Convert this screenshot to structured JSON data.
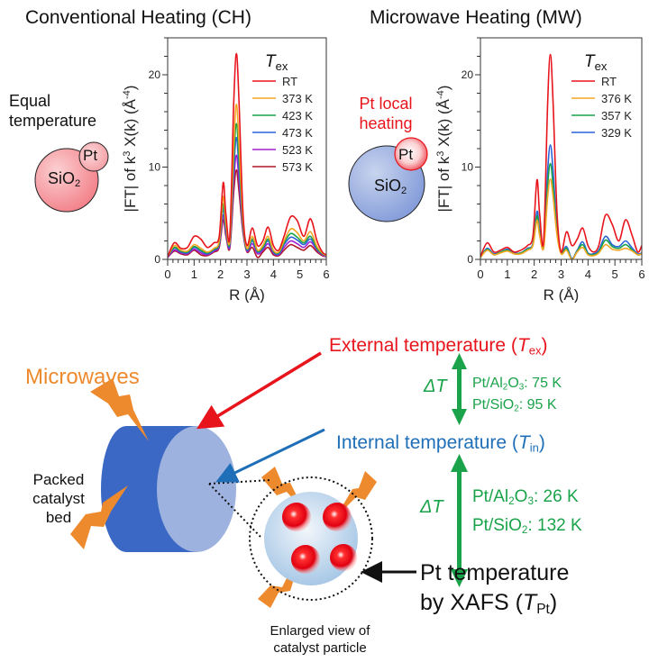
{
  "colors": {
    "red": "#e8141c",
    "orange": "#f5a623",
    "green": "#1aa34a",
    "blue": "#2a62d8",
    "purple": "#a020d0",
    "darkred": "#b01828",
    "microwave_orange": "#ee8a2e",
    "ext_red": "#e8141c",
    "int_blue": "#1f6fb8",
    "delta_green": "#1aa34a",
    "cyl_dark": "#3a68c4",
    "cyl_light": "#9db2df"
  },
  "left_panel": {
    "title": "Conventional Heating (CH)",
    "caption_line1": "Equal",
    "caption_line2": "temperature",
    "particle_pt": "Pt",
    "particle_support": "SiO",
    "particle_support_sub": "2"
  },
  "right_panel": {
    "title": "Microwave Heating (MW)",
    "caption_line1": "Pt local",
    "caption_line2": "heating",
    "particle_pt": "Pt",
    "particle_support": "SiO",
    "particle_support_sub": "2"
  },
  "chart_data": [
    {
      "type": "line",
      "title": "Conventional Heating (CH)",
      "xlabel": "R (Å)",
      "ylabel": "|FT| of k3 X(k) (Å-4)",
      "ylabel_parts": {
        "a": "|FT| of k",
        "b": "3",
        "c": " X(k) (Å",
        "d": "-4",
        "e": ")"
      },
      "xlim": [
        0,
        6
      ],
      "ylim": [
        0,
        24
      ],
      "xticks": [
        "0",
        "1",
        "2",
        "3",
        "4",
        "5",
        "6"
      ],
      "yticks": [
        "0",
        "10",
        "20"
      ],
      "legend_title": "T",
      "legend_title_sub": "ex",
      "legend_position": "top-right",
      "x": [
        0,
        0.25,
        0.5,
        0.75,
        1.0,
        1.25,
        1.5,
        1.75,
        1.95,
        2.1,
        2.2,
        2.35,
        2.5,
        2.6,
        2.7,
        2.85,
        3.0,
        3.2,
        3.4,
        3.6,
        3.8,
        4.0,
        4.2,
        4.4,
        4.65,
        4.9,
        5.15,
        5.4,
        5.65,
        5.85,
        6.0
      ],
      "series": [
        {
          "name": "RT",
          "color": "#e8141c",
          "values": [
            0.3,
            1.8,
            1.2,
            1.3,
            2.5,
            2.2,
            1.3,
            1.8,
            2.5,
            8.3,
            5.0,
            2.5,
            17.0,
            22.3,
            17.0,
            5.0,
            1.5,
            3.4,
            1.5,
            2.0,
            3.5,
            1.5,
            1.0,
            2.5,
            4.6,
            4.2,
            2.5,
            4.4,
            2.0,
            0.8,
            0.5
          ]
        },
        {
          "name": "373 K",
          "color": "#f5a623",
          "values": [
            0.3,
            1.5,
            1.0,
            0.9,
            1.6,
            1.2,
            0.8,
            1.2,
            2.0,
            6.8,
            4.0,
            2.0,
            12.5,
            16.8,
            12.5,
            4.2,
            1.2,
            2.5,
            1.0,
            1.5,
            2.5,
            1.0,
            0.8,
            2.0,
            3.3,
            2.9,
            2.0,
            3.0,
            1.4,
            0.7,
            0.4
          ]
        },
        {
          "name": "423 K",
          "color": "#1aa34a",
          "values": [
            0.3,
            1.3,
            0.9,
            0.8,
            1.4,
            1.0,
            0.7,
            1.1,
            1.8,
            6.0,
            3.6,
            1.8,
            11.0,
            14.7,
            11.0,
            3.8,
            1.1,
            2.2,
            0.9,
            1.3,
            2.2,
            0.9,
            0.7,
            1.8,
            2.8,
            2.4,
            1.8,
            2.5,
            1.2,
            0.6,
            0.4
          ]
        },
        {
          "name": "473 K",
          "color": "#2a62d8",
          "values": [
            0.3,
            1.2,
            0.8,
            0.7,
            1.3,
            0.9,
            0.6,
            1.0,
            1.7,
            5.5,
            3.3,
            1.6,
            9.8,
            13.2,
            9.8,
            3.5,
            1.0,
            2.0,
            0.8,
            1.2,
            2.0,
            0.8,
            0.6,
            1.6,
            2.4,
            2.1,
            1.6,
            2.2,
            1.1,
            0.6,
            0.4
          ]
        },
        {
          "name": "523 K",
          "color": "#a020d0",
          "values": [
            0.2,
            1.0,
            0.7,
            0.6,
            1.1,
            0.7,
            0.5,
            0.9,
            1.5,
            4.8,
            2.9,
            1.4,
            8.5,
            11.3,
            8.5,
            3.2,
            0.9,
            1.7,
            0.6,
            1.0,
            1.7,
            0.7,
            0.5,
            1.3,
            2.0,
            1.7,
            1.3,
            1.9,
            1.0,
            0.5,
            0.3
          ]
        },
        {
          "name": "573 K",
          "color": "#b01828",
          "values": [
            0.2,
            0.9,
            0.6,
            0.5,
            1.0,
            0.5,
            0.4,
            0.8,
            1.3,
            4.3,
            2.6,
            1.2,
            7.3,
            9.7,
            7.3,
            2.9,
            0.8,
            1.3,
            0.2,
            0.8,
            1.3,
            0.5,
            0.4,
            1.0,
            1.6,
            1.3,
            1.0,
            1.5,
            0.8,
            0.4,
            0.3
          ]
        }
      ]
    },
    {
      "type": "line",
      "title": "Microwave Heating (MW)",
      "xlabel": "R (Å)",
      "ylabel": "|FT| of k3 X(k) (Å-4)",
      "ylabel_parts": {
        "a": "|FT| of k",
        "b": "3",
        "c": " X(k) (Å",
        "d": "-4",
        "e": ")"
      },
      "xlim": [
        0,
        6
      ],
      "ylim": [
        0,
        24
      ],
      "xticks": [
        "0",
        "1",
        "2",
        "3",
        "4",
        "5",
        "6"
      ],
      "yticks": [
        "0",
        "10",
        "20"
      ],
      "legend_title": "T",
      "legend_title_sub": "ex",
      "legend_position": "top-right",
      "x": [
        0,
        0.25,
        0.5,
        0.75,
        1.0,
        1.25,
        1.5,
        1.75,
        1.95,
        2.1,
        2.2,
        2.35,
        2.5,
        2.6,
        2.7,
        2.85,
        3.0,
        3.2,
        3.4,
        3.6,
        3.8,
        4.0,
        4.2,
        4.4,
        4.65,
        4.9,
        5.15,
        5.4,
        5.65,
        5.85,
        6.0
      ],
      "series": [
        {
          "name": "RT",
          "color": "#e8141c",
          "values": [
            0.3,
            1.8,
            0.8,
            1.0,
            1.3,
            0.8,
            1.0,
            1.5,
            2.5,
            8.6,
            5.0,
            2.0,
            17.0,
            22.2,
            17.0,
            5.0,
            0.8,
            3.0,
            1.5,
            2.2,
            3.4,
            1.5,
            0.8,
            1.5,
            4.8,
            3.8,
            2.0,
            4.3,
            2.5,
            0.8,
            1.5
          ]
        },
        {
          "name": "376 K",
          "color": "#f5a623",
          "values": [
            0.2,
            1.0,
            0.5,
            0.7,
            0.9,
            0.6,
            0.6,
            1.0,
            1.5,
            4.2,
            2.6,
            1.2,
            6.8,
            8.7,
            6.8,
            2.6,
            0.6,
            1.0,
            0.0,
            0.8,
            1.3,
            0.5,
            0.4,
            0.7,
            1.6,
            1.1,
            1.0,
            1.2,
            0.9,
            0.5,
            0.6
          ]
        },
        {
          "name": "357 K",
          "color": "#1aa34a",
          "values": [
            0.2,
            1.1,
            0.5,
            0.8,
            1.0,
            0.6,
            0.7,
            1.1,
            1.6,
            4.7,
            2.9,
            1.3,
            8.0,
            10.4,
            8.0,
            2.9,
            0.7,
            1.2,
            0.0,
            0.9,
            1.6,
            0.6,
            0.5,
            0.8,
            2.1,
            1.4,
            1.2,
            1.6,
            1.0,
            0.5,
            0.6
          ]
        },
        {
          "name": "329 K",
          "color": "#2a62d8",
          "values": [
            0.2,
            1.2,
            0.6,
            0.8,
            1.1,
            0.7,
            0.7,
            1.2,
            1.7,
            5.2,
            3.2,
            1.4,
            9.6,
            12.4,
            9.6,
            3.2,
            0.8,
            1.4,
            0.1,
            1.0,
            1.9,
            0.7,
            0.6,
            1.0,
            2.5,
            1.6,
            1.4,
            2.0,
            1.2,
            0.6,
            0.7
          ]
        }
      ]
    }
  ],
  "diagram": {
    "microwaves_label": "Microwaves",
    "bed_label_1": "Packed",
    "bed_label_2": "catalyst",
    "bed_label_3": "bed",
    "external": {
      "text": "External temperature (",
      "sym": "T",
      "sub": "ex",
      "close": ")"
    },
    "internal": {
      "text": "Internal temperature (",
      "sym": "T",
      "sub": "in",
      "close": ")"
    },
    "pt_temp": {
      "line1": "Pt temperature",
      "line2": "by XAFS (",
      "sym": "T",
      "sub": "Pt",
      "close": ")"
    },
    "delta1": {
      "symbol": "ΔT",
      "row1": {
        "a": "Pt/Al",
        "s1": "2",
        "b": "O",
        "s2": "3",
        "c": ": 75 K"
      },
      "row2": {
        "a": "Pt/SiO",
        "s1": "2",
        "c": ": 95 K"
      }
    },
    "delta2": {
      "symbol": "ΔT",
      "row1": {
        "a": "Pt/Al",
        "s1": "2",
        "b": "O",
        "s2": "3",
        "c": ": 26 K"
      },
      "row2": {
        "a": "Pt/SiO",
        "s1": "2",
        "c": ": 132 K"
      }
    },
    "enlarged_1": "Enlarged view of",
    "enlarged_2": "catalyst particle"
  }
}
